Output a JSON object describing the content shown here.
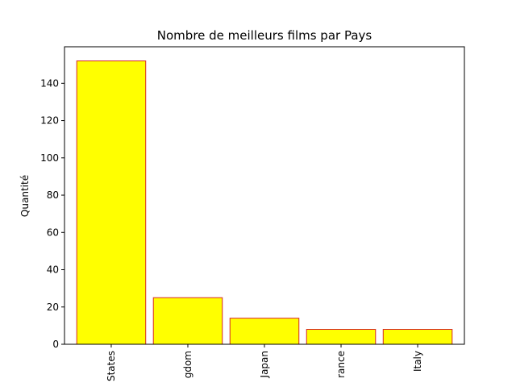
{
  "chart_data": {
    "type": "bar",
    "title": "Nombre de meilleurs films par Pays",
    "xlabel": "",
    "ylabel": "Quantité",
    "categories": [
      "United States",
      "United Kingdom",
      "Japan",
      "France",
      "Italy"
    ],
    "category_tick_labels": [
      "States",
      "gdom",
      "Japan",
      "rance",
      "Italy"
    ],
    "values": [
      152,
      25,
      14,
      8,
      8
    ],
    "ylim": [
      0,
      159.6
    ],
    "yticks": [
      0,
      20,
      40,
      60,
      80,
      100,
      120,
      140
    ],
    "ytick_labels": [
      "0",
      "20",
      "40",
      "60",
      "80",
      "100",
      "120",
      "140"
    ],
    "bar_fill": "#ffff00",
    "bar_edge": "#d62728",
    "grid": false,
    "legend": "none"
  }
}
